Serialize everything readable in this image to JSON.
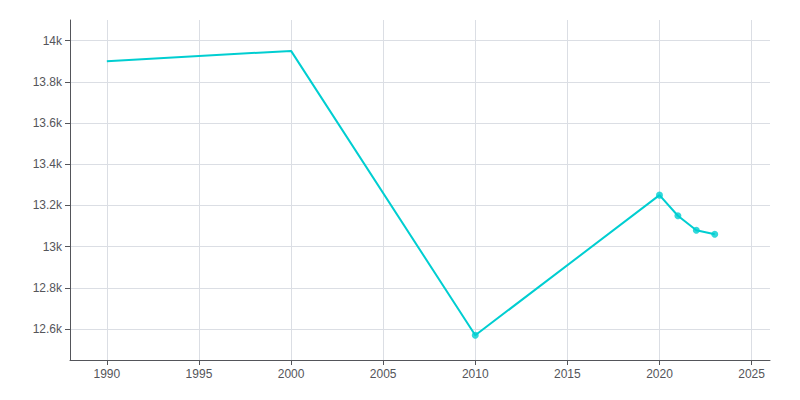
{
  "chart_data": {
    "type": "line",
    "series": [
      {
        "type": "line",
        "color": "#00CED1",
        "x": [
          1990,
          2000,
          2010,
          2020,
          2021,
          2022,
          2023
        ],
        "values": [
          13900,
          13950,
          12570,
          13250,
          13150,
          13080,
          13060
        ]
      },
      {
        "type": "scatter",
        "color": "#00CED1",
        "marker": "circle",
        "x": [
          2010,
          2020,
          2021,
          2022,
          2023
        ],
        "values": [
          12570,
          13250,
          13150,
          13080,
          13060
        ]
      }
    ],
    "xlim": [
      1988,
      2026
    ],
    "xticks": [
      1990,
      1995,
      2000,
      2005,
      2010,
      2015,
      2020,
      2025
    ],
    "ylim": [
      12450,
      14100
    ],
    "yticks": [
      {
        "value": 12600,
        "label": "12.6k"
      },
      {
        "value": 12800,
        "label": "12.8k"
      },
      {
        "value": 13000,
        "label": "13k"
      },
      {
        "value": 13200,
        "label": "13.2k"
      },
      {
        "value": 13400,
        "label": "13.4k"
      },
      {
        "value": 13600,
        "label": "13.6k"
      },
      {
        "value": 13800,
        "label": "13.8k"
      },
      {
        "value": 14000,
        "label": "14k"
      }
    ],
    "grid": true
  }
}
